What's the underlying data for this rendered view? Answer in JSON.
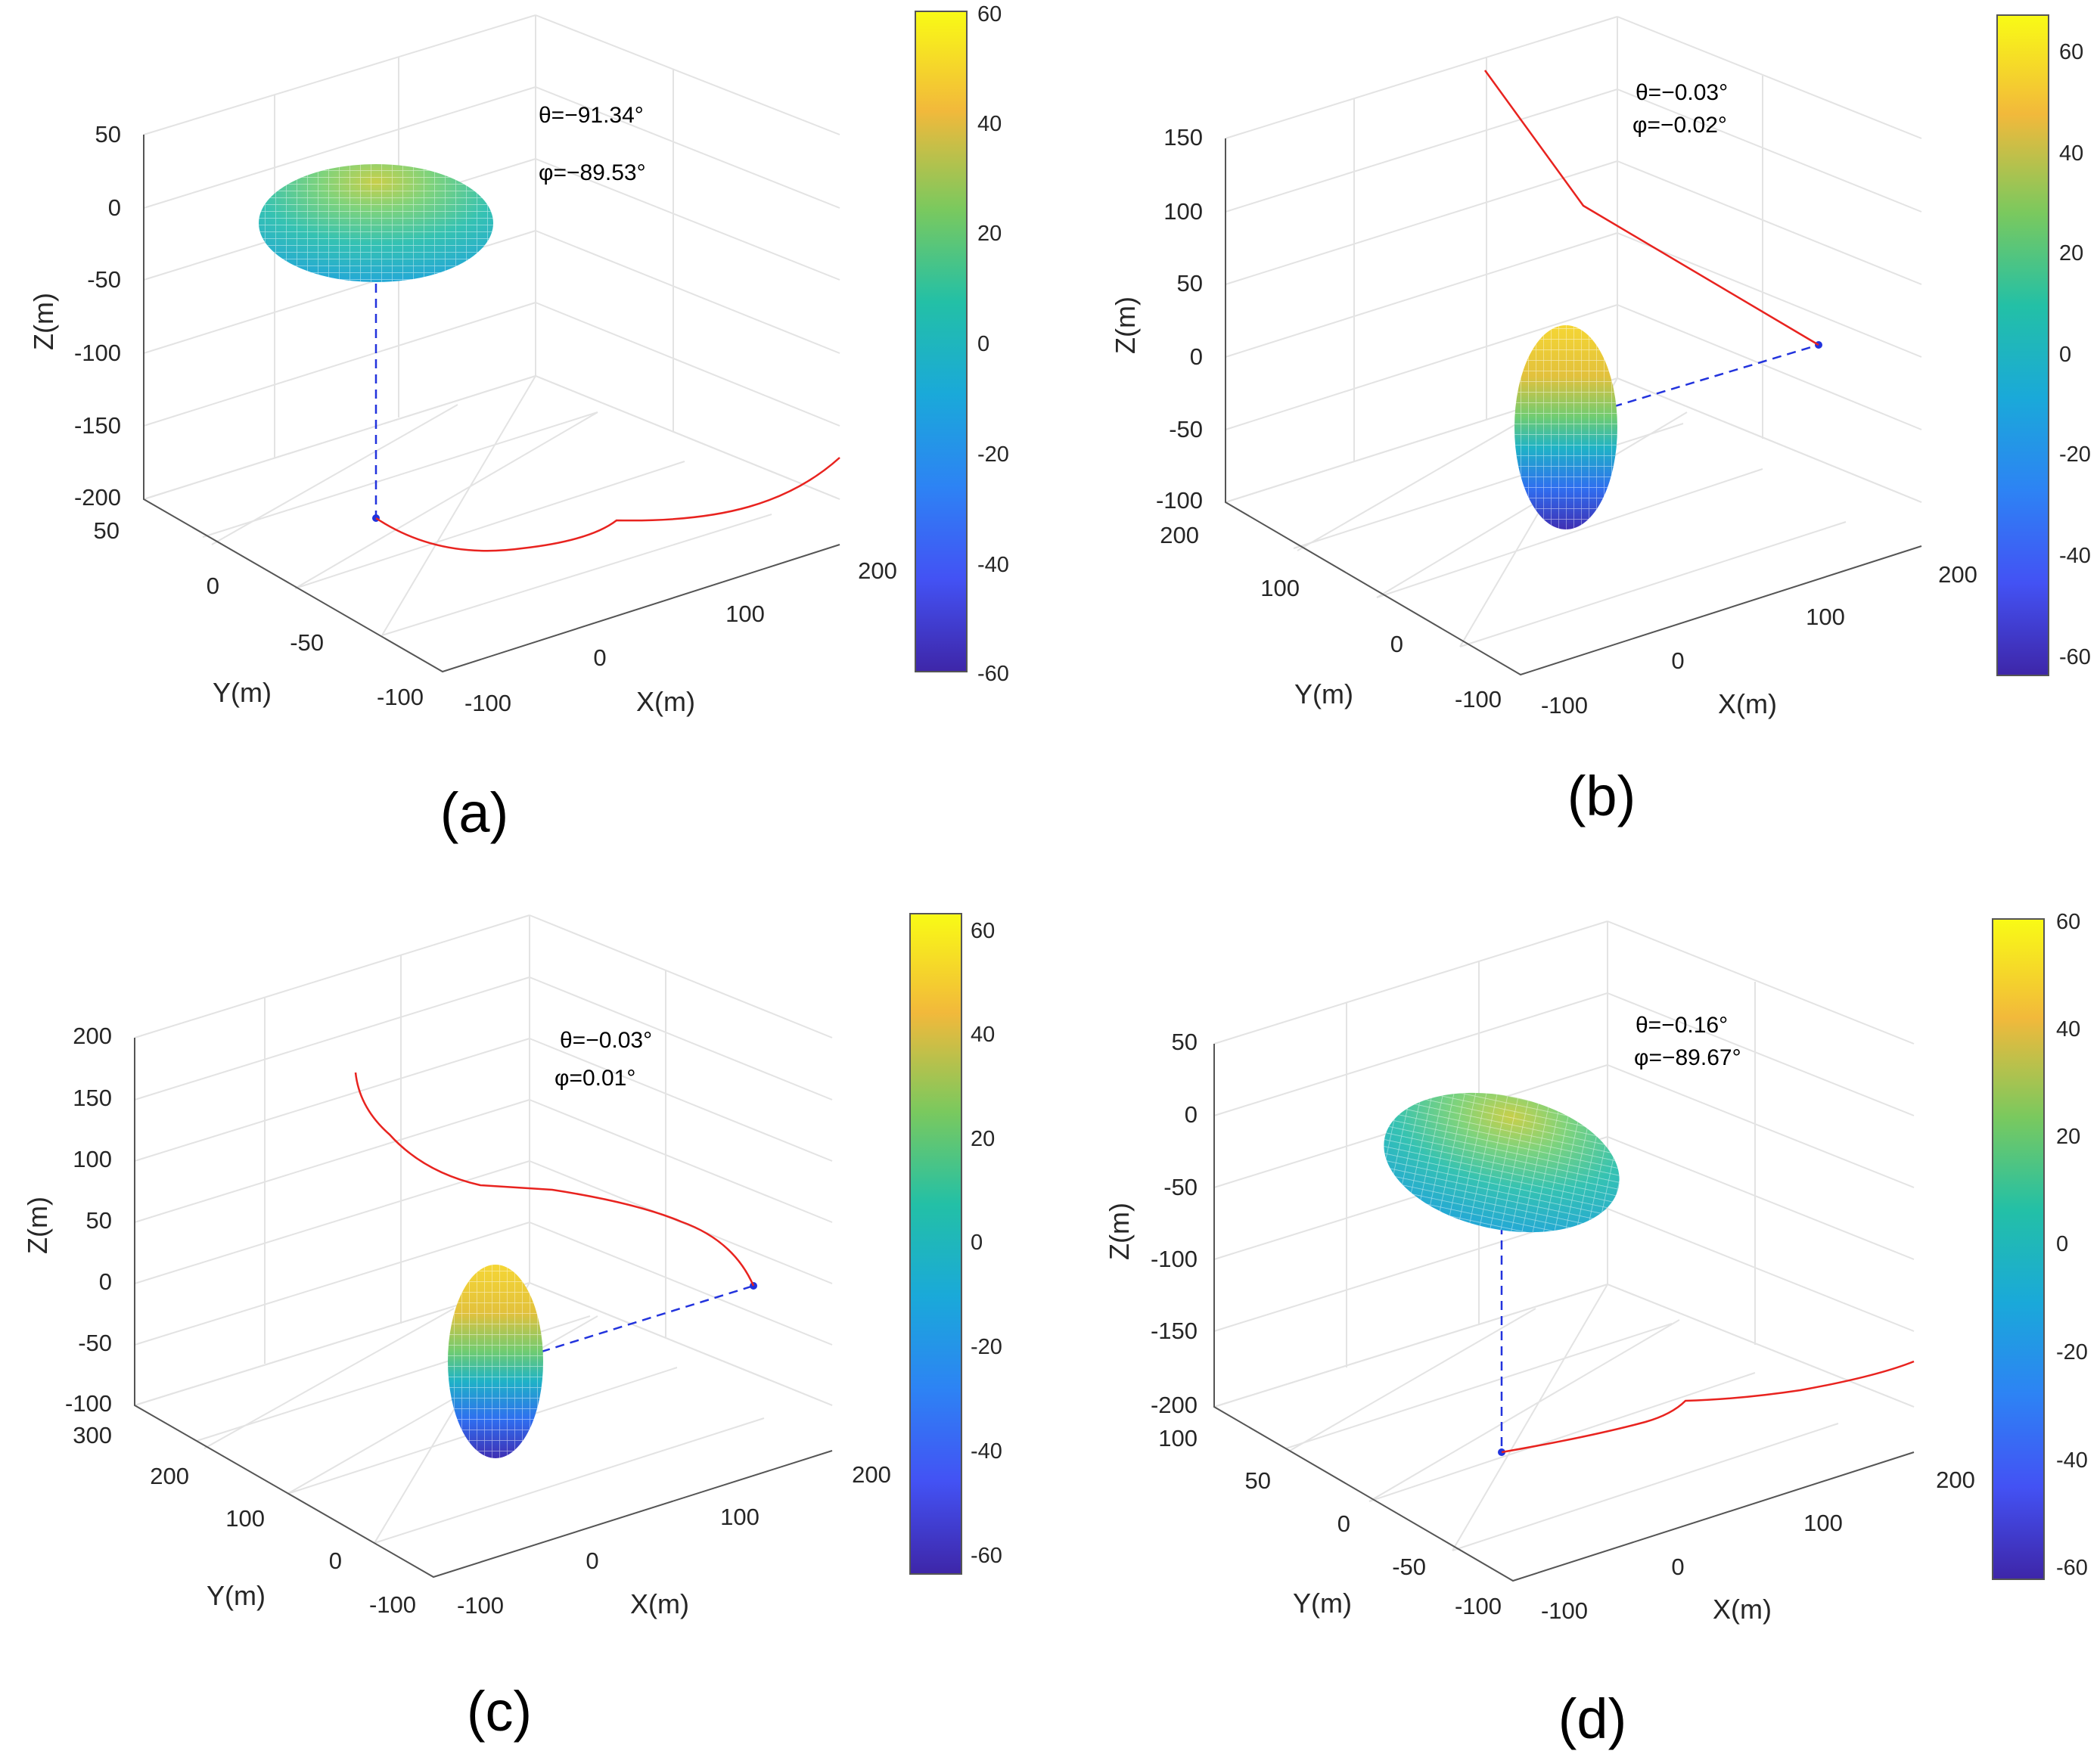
{
  "chart_data": [
    {
      "type": "3d-surface-with-trajectory",
      "panel": "(a)",
      "xlabel": "X(m)",
      "ylabel": "Y(m)",
      "zlabel": "Z(m)",
      "x_ticks": [
        "-100",
        "0",
        "100",
        "200"
      ],
      "y_ticks": [
        "-100",
        "-50",
        "0",
        "50"
      ],
      "z_ticks": [
        "-200",
        "-150",
        "-100",
        "-50",
        "0",
        "50"
      ],
      "xlim": [
        -100,
        200
      ],
      "ylim": [
        -100,
        50
      ],
      "zlim": [
        -200,
        50
      ],
      "annotations": [
        "θ=−91.34°",
        "φ=−89.53°"
      ],
      "colorbar": {
        "ticks": [
          "60",
          "40",
          "20",
          "0",
          "-20",
          "-40",
          "-60"
        ],
        "range": [
          -60,
          60
        ]
      },
      "ellipsoid_orientation": "horizontal",
      "target_point": [
        -10,
        -45,
        -200
      ],
      "trajectory": [
        [
          -10,
          -45,
          -200
        ],
        [
          40,
          -30,
          -200
        ],
        [
          80,
          -10,
          -200
        ],
        [
          120,
          5,
          -200
        ],
        [
          165,
          20,
          -200
        ],
        [
          205,
          35,
          -200
        ]
      ]
    },
    {
      "type": "3d-surface-with-trajectory",
      "panel": "(b)",
      "xlabel": "X(m)",
      "ylabel": "Y(m)",
      "zlabel": "Z(m)",
      "x_ticks": [
        "-100",
        "0",
        "100",
        "200"
      ],
      "y_ticks": [
        "-100",
        "0",
        "100",
        "200"
      ],
      "z_ticks": [
        "-100",
        "-50",
        "0",
        "50",
        "100",
        "150"
      ],
      "xlim": [
        -100,
        200
      ],
      "ylim": [
        -100,
        200
      ],
      "zlim": [
        -100,
        150
      ],
      "annotations": [
        "θ=−0.03°",
        "φ=−0.02°"
      ],
      "colorbar": {
        "ticks": [
          "60",
          "40",
          "20",
          "0",
          "-20",
          "-40",
          "-60"
        ],
        "range": [
          -65,
          65
        ]
      },
      "ellipsoid_orientation": "vertical",
      "target_point": [
        200,
        100,
        0
      ],
      "trajectory": [
        [
          200,
          100,
          0
        ],
        [
          130,
          120,
          70
        ],
        [
          80,
          135,
          110
        ],
        [
          20,
          170,
          170
        ]
      ]
    },
    {
      "type": "3d-surface-with-trajectory",
      "panel": "(c)",
      "xlabel": "X(m)",
      "ylabel": "Y(m)",
      "zlabel": "Z(m)",
      "x_ticks": [
        "-100",
        "0",
        "100",
        "200"
      ],
      "y_ticks": [
        "-100",
        "0",
        "100",
        "200",
        "300"
      ],
      "z_ticks": [
        "-100",
        "-50",
        "0",
        "50",
        "100",
        "150",
        "200"
      ],
      "xlim": [
        -100,
        200
      ],
      "ylim": [
        -100,
        300
      ],
      "zlim": [
        -100,
        200
      ],
      "annotations": [
        "θ=−0.03°",
        "φ=0.01°"
      ],
      "colorbar": {
        "ticks": [
          "60",
          "40",
          "20",
          "0",
          "-20",
          "-40",
          "-60"
        ],
        "range": [
          -65,
          65
        ]
      },
      "ellipsoid_orientation": "vertical",
      "target_point": [
        200,
        150,
        0
      ],
      "trajectory": [
        [
          200,
          150,
          0
        ],
        [
          150,
          170,
          50
        ],
        [
          90,
          190,
          80
        ],
        [
          40,
          220,
          100
        ],
        [
          0,
          260,
          160
        ]
      ]
    },
    {
      "type": "3d-surface-with-trajectory",
      "panel": "(d)",
      "xlabel": "X(m)",
      "ylabel": "Y(m)",
      "zlabel": "Z(m)",
      "x_ticks": [
        "-100",
        "0",
        "100",
        "200"
      ],
      "y_ticks": [
        "-100",
        "-50",
        "0",
        "50",
        "100"
      ],
      "z_ticks": [
        "-200",
        "-150",
        "-100",
        "-50",
        "0",
        "50"
      ],
      "xlim": [
        -100,
        200
      ],
      "ylim": [
        -100,
        100
      ],
      "zlim": [
        -200,
        50
      ],
      "annotations": [
        "θ=−0.16°",
        "φ=−89.67°"
      ],
      "colorbar": {
        "ticks": [
          "60",
          "40",
          "20",
          "0",
          "-20",
          "-40",
          "-60"
        ],
        "range": [
          -62,
          62
        ]
      },
      "ellipsoid_orientation": "horizontal",
      "target_point": [
        0,
        -40,
        -200
      ],
      "trajectory": [
        [
          0,
          -40,
          -200
        ],
        [
          60,
          -20,
          -200
        ],
        [
          100,
          0,
          -200
        ],
        [
          150,
          20,
          -200
        ],
        [
          205,
          40,
          -200
        ]
      ]
    }
  ],
  "colors": {
    "trajectory": "#e8231f",
    "target_line": "#2233dd",
    "grid": "#e3e3e3",
    "axis": "#555555"
  }
}
